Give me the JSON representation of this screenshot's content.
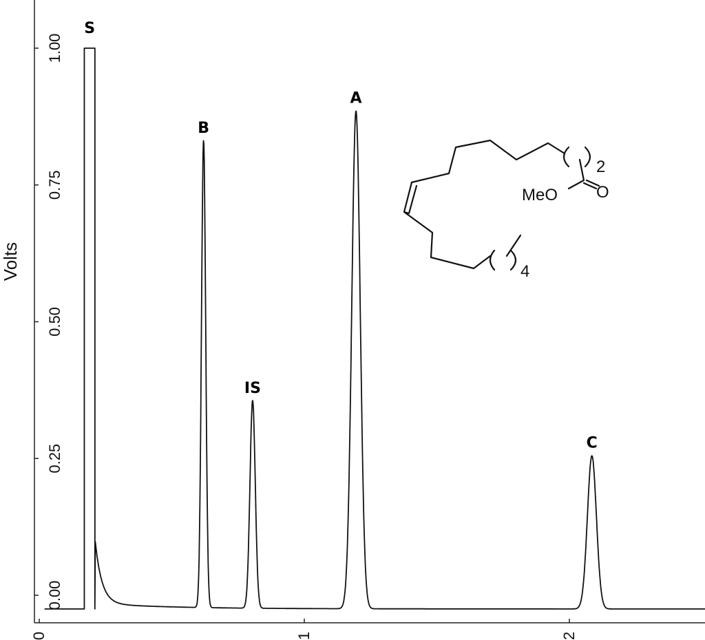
{
  "chart_data": {
    "type": "line",
    "title": "",
    "xlabel": "",
    "ylabel": "Volts",
    "xlim": [
      0,
      2.5
    ],
    "ylim": [
      -0.05,
      1.1
    ],
    "grid": false,
    "yticks": [
      {
        "value": 0.0,
        "label": "0.00"
      },
      {
        "value": 0.25,
        "label": "0.25"
      },
      {
        "value": 0.5,
        "label": "0.50"
      },
      {
        "value": 0.75,
        "label": "0.75"
      },
      {
        "value": 1.0,
        "label": "1.00"
      }
    ],
    "xticks": [
      {
        "value": 0,
        "label": "0"
      },
      {
        "value": 1,
        "label": "1"
      },
      {
        "value": 2,
        "label": "2"
      }
    ],
    "baseline": -0.025,
    "solvent": {
      "label": "S",
      "start": 0.17,
      "end": 0.21,
      "height": 1.0
    },
    "peaks": [
      {
        "label": "B",
        "x": 0.62,
        "height": 0.855,
        "width": 0.008
      },
      {
        "label": "IS",
        "x": 0.805,
        "height": 0.38,
        "width": 0.01
      },
      {
        "label": "A",
        "x": 1.195,
        "height": 0.91,
        "width": 0.016
      },
      {
        "label": "C",
        "x": 2.085,
        "height": 0.28,
        "width": 0.017
      }
    ],
    "annotations": {
      "structure_texts": [
        "MeO",
        "O",
        "2",
        "4"
      ]
    }
  }
}
